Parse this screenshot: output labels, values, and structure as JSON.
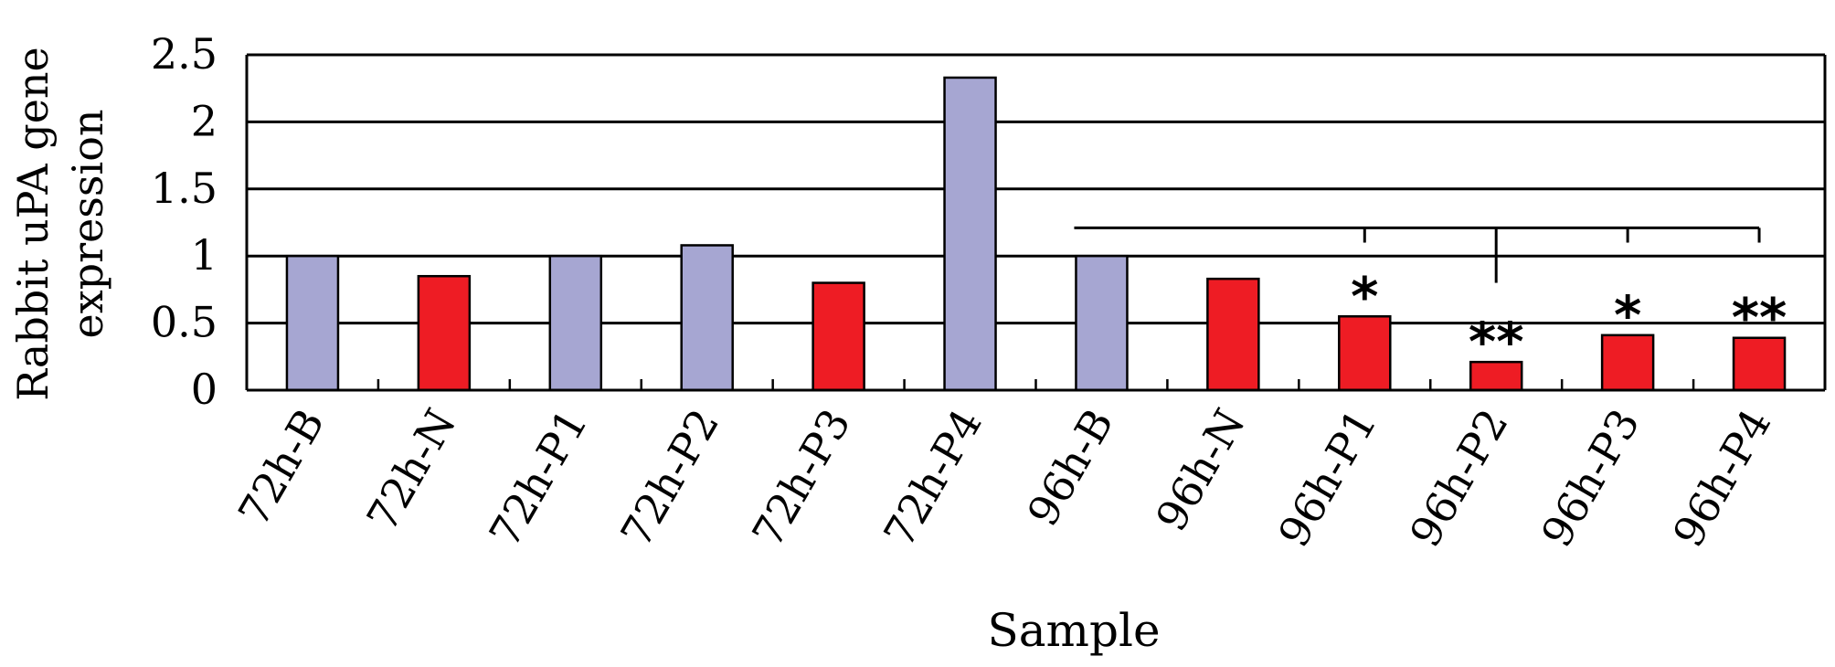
{
  "chart_data": {
    "type": "bar",
    "title": "",
    "xlabel": "Sample",
    "ylabel_lines": [
      "Rabbit uPA gene",
      "expression"
    ],
    "ylim": [
      0,
      2.5
    ],
    "yticks": [
      "0",
      "0.5",
      "1",
      "1.5",
      "2",
      "2.5"
    ],
    "grid": true,
    "categories": [
      "72h-B",
      "72h-N",
      "72h-P1",
      "72h-P2",
      "72h-P3",
      "72h-P4",
      "96h-B",
      "96h-N",
      "96h-P1",
      "96h-P2",
      "96h-P3",
      "96h-P4"
    ],
    "values": [
      1.0,
      0.85,
      1.0,
      1.08,
      0.8,
      2.33,
      1.0,
      0.83,
      0.55,
      0.21,
      0.41,
      0.39
    ],
    "bar_colors": [
      "#a6a6d2",
      "#ee1c24",
      "#a6a6d2",
      "#a6a6d2",
      "#ee1c24",
      "#a6a6d2",
      "#a6a6d2",
      "#ee1c24",
      "#ee1c24",
      "#ee1c24",
      "#ee1c24",
      "#ee1c24"
    ],
    "annotations": [
      {
        "category": "96h-P1",
        "text": "*"
      },
      {
        "category": "96h-P2",
        "text": "**"
      },
      {
        "category": "96h-P3",
        "text": "*"
      },
      {
        "category": "96h-P4",
        "text": "**"
      }
    ],
    "significance_bracket": {
      "from": "96h-B",
      "to": "96h-P4",
      "level": 1.21,
      "drops": [
        {
          "category": "96h-P1",
          "to_level": 1.1
        },
        {
          "category": "96h-P2",
          "to_level": 0.8
        },
        {
          "category": "96h-P3",
          "to_level": 1.1
        },
        {
          "category": "96h-P4",
          "to_level": 1.1
        }
      ]
    }
  }
}
